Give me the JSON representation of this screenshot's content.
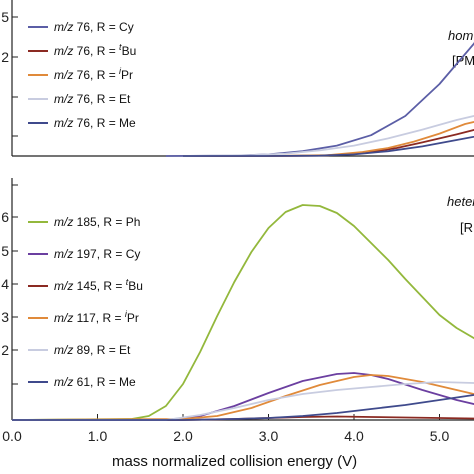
{
  "chart_data": [
    {
      "type": "line",
      "panel": "top",
      "title": "",
      "xlabel": "",
      "ylabel": "",
      "xlim": [
        0,
        5.9
      ],
      "ylim": [
        0,
        1.9
      ],
      "y_tick_labels": [
        "5",
        "2"
      ],
      "annotations": [
        "hom",
        "[PM"
      ],
      "legend_position": "top-left",
      "series": [
        {
          "name": "R = Cy",
          "mz": "m/z",
          "label": " 76, R = Cy",
          "sup": "",
          "color": "#5b5ea6",
          "x": [
            1.8,
            2.6,
            3.0,
            3.4,
            3.8,
            4.2,
            4.6,
            5.0,
            5.4,
            5.7
          ],
          "y": [
            0,
            0.005,
            0.02,
            0.06,
            0.13,
            0.26,
            0.5,
            0.9,
            1.4,
            1.85
          ]
        },
        {
          "name": "R = tBu",
          "mz": "m/z",
          "label": " 76, R = ",
          "sup": "t",
          "suffix": "Bu",
          "color": "#8b2a22",
          "x": [
            2.0,
            3.0,
            3.6,
            3.9,
            4.2,
            4.5,
            4.8,
            5.2,
            5.6,
            5.9
          ],
          "y": [
            0,
            0,
            0.005,
            0.02,
            0.05,
            0.1,
            0.17,
            0.27,
            0.38,
            0.45
          ]
        },
        {
          "name": "R = iPr",
          "mz": "m/z",
          "label": " 76, R = ",
          "sup": "i",
          "suffix": "Pr",
          "color": "#e08a3a",
          "x": [
            2.0,
            3.0,
            3.7,
            4.1,
            4.4,
            4.7,
            5.0,
            5.3,
            5.7,
            5.9
          ],
          "y": [
            0,
            0,
            0.01,
            0.05,
            0.1,
            0.18,
            0.28,
            0.4,
            0.5,
            0.55
          ]
        },
        {
          "name": "R = Et",
          "mz": "m/z",
          "label": " 76, R = Et",
          "sup": "",
          "color": "#c8cce0",
          "x": [
            2.0,
            2.8,
            3.2,
            3.6,
            4.0,
            4.4,
            4.8,
            5.2,
            5.6,
            5.9
          ],
          "y": [
            0,
            0.01,
            0.03,
            0.07,
            0.13,
            0.22,
            0.33,
            0.45,
            0.55,
            0.62
          ]
        },
        {
          "name": "R = Me",
          "mz": "m/z",
          "label": " 76, R = Me",
          "sup": "",
          "color": "#3f4a8c",
          "x": [
            2.0,
            3.0,
            3.6,
            4.0,
            4.4,
            4.8,
            5.2,
            5.6,
            5.9
          ],
          "y": [
            0,
            0,
            0.005,
            0.02,
            0.06,
            0.12,
            0.2,
            0.28,
            0.32
          ]
        }
      ]
    },
    {
      "type": "line",
      "panel": "bottom",
      "title": "",
      "xlabel": "mass normalized collision energy (V)",
      "ylabel": "",
      "xlim": [
        0,
        5.9
      ],
      "ylim": [
        0,
        2.35
      ],
      "x_tick_values": [
        0,
        1,
        2,
        3,
        4,
        5
      ],
      "x_tick_labels": [
        "0.0",
        "1.0",
        "2.0",
        "3.0",
        "4.0",
        "5.0"
      ],
      "y_tick_labels": [
        "6",
        "5",
        "4",
        "3",
        "2"
      ],
      "annotations": [
        "heter",
        "[R"
      ],
      "legend_position": "top-left",
      "series": [
        {
          "name": "R = Ph",
          "mz": "m/z",
          "label": " 185, R = Ph",
          "sup": "",
          "color": "#93b83c",
          "x": [
            0,
            1.4,
            1.6,
            1.8,
            2.0,
            2.2,
            2.4,
            2.6,
            2.8,
            3.0,
            3.2,
            3.4,
            3.6,
            3.8,
            4.0,
            4.2,
            4.4,
            4.6,
            4.8,
            5.0,
            5.2,
            5.4,
            5.6,
            5.8,
            5.9
          ],
          "y": [
            0,
            0.01,
            0.04,
            0.14,
            0.36,
            0.68,
            1.04,
            1.38,
            1.68,
            1.92,
            2.08,
            2.15,
            2.14,
            2.07,
            1.94,
            1.77,
            1.6,
            1.41,
            1.23,
            1.05,
            0.92,
            0.82,
            0.72,
            0.62,
            0.58
          ]
        },
        {
          "name": "R = Cy",
          "mz": "m/z",
          "label": " 197, R = Cy",
          "sup": "",
          "color": "#6b3fa0",
          "x": [
            0,
            1.8,
            2.2,
            2.6,
            3.0,
            3.4,
            3.8,
            4.0,
            4.2,
            4.4,
            4.8,
            5.2,
            5.6,
            5.9
          ],
          "y": [
            0,
            0,
            0.04,
            0.14,
            0.27,
            0.39,
            0.46,
            0.47,
            0.45,
            0.41,
            0.3,
            0.2,
            0.12,
            0.08
          ]
        },
        {
          "name": "R = tBu",
          "mz": "m/z",
          "label": " 145, R = ",
          "sup": "t",
          "suffix": "Bu",
          "color": "#8b2a22",
          "x": [
            0,
            2.0,
            2.6,
            3.0,
            3.4,
            3.8,
            4.2,
            4.6,
            5.0,
            5.4,
            5.9
          ],
          "y": [
            0,
            0,
            0.01,
            0.02,
            0.03,
            0.035,
            0.03,
            0.025,
            0.02,
            0.015,
            0.01
          ]
        },
        {
          "name": "R = iPr",
          "mz": "m/z",
          "label": " 117, R = ",
          "sup": "i",
          "suffix": "Pr",
          "color": "#e08a3a",
          "x": [
            0,
            2.0,
            2.4,
            2.8,
            3.2,
            3.6,
            4.0,
            4.2,
            4.4,
            4.8,
            5.2,
            5.6,
            5.9
          ],
          "y": [
            0,
            0.01,
            0.04,
            0.12,
            0.24,
            0.35,
            0.43,
            0.45,
            0.44,
            0.38,
            0.3,
            0.22,
            0.18
          ]
        },
        {
          "name": "R = Et",
          "mz": "m/z",
          "label": " 89, R = Et",
          "sup": "",
          "color": "#c8cce0",
          "x": [
            0,
            1.8,
            2.2,
            2.6,
            3.0,
            3.4,
            3.8,
            4.2,
            4.6,
            5.0,
            5.4,
            5.9
          ],
          "y": [
            0,
            0,
            0.05,
            0.12,
            0.2,
            0.26,
            0.3,
            0.33,
            0.36,
            0.38,
            0.37,
            0.35
          ]
        },
        {
          "name": "R = Me",
          "mz": "m/z",
          "label": " 61, R = Me",
          "sup": "",
          "color": "#3f4a8c",
          "x": [
            0,
            2.0,
            2.6,
            3.0,
            3.4,
            3.8,
            4.2,
            4.6,
            5.0,
            5.4,
            5.9
          ],
          "y": [
            0,
            0,
            0.01,
            0.02,
            0.04,
            0.07,
            0.11,
            0.15,
            0.2,
            0.25,
            0.32
          ]
        }
      ]
    }
  ]
}
